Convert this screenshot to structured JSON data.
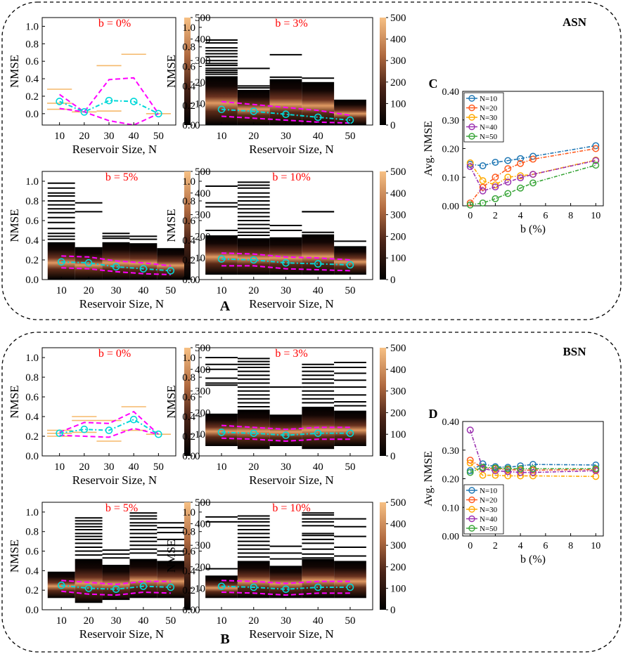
{
  "figure": {
    "panel_labels": {
      "A": "A",
      "B": "B",
      "C": "C",
      "D": "D"
    }
  },
  "colors": {
    "heat_low": "#000000",
    "heat_mid": "#7a3d24",
    "heat_high": "#f2b87a",
    "mean_line": "#00d8d8",
    "band_line": "#ff00ff",
    "title_red": "#ff0000",
    "err_bar": "#f5b86a"
  },
  "groups": [
    {
      "id": "asn",
      "label": "ASN"
    },
    {
      "id": "bsn",
      "label": "BSN"
    }
  ],
  "chart_data": [
    {
      "id": "asn-b0",
      "type": "heatmap",
      "group": "ASN",
      "title": "b = 0%",
      "xlabel": "Reservoir Size, N",
      "ylabel": "NMSE",
      "categories": [
        10,
        20,
        30,
        40,
        50
      ],
      "xlim": [
        3,
        57
      ],
      "ylim": [
        -0.13,
        1.1
      ],
      "yticks": [
        0.0,
        0.2,
        0.4,
        0.6,
        0.8,
        1.0
      ],
      "colorbar": {
        "min": 0,
        "max": 500,
        "ticks": [
          0,
          100,
          200,
          300,
          400,
          500
        ]
      },
      "mean": [
        0.14,
        0.02,
        0.15,
        0.14,
        0.0
      ],
      "band_upper": [
        0.22,
        0.02,
        0.39,
        0.41,
        0.0
      ],
      "band_lower": [
        0.06,
        0.02,
        -0.08,
        -0.13,
        0.0
      ],
      "dist": "none",
      "err_marks": [
        [
          0.28,
          0.12,
          0.05
        ],
        [
          0.02
        ],
        [
          0.55,
          0.03
        ],
        [
          0.68
        ],
        [
          0.0
        ]
      ]
    },
    {
      "id": "asn-b3",
      "type": "heatmap",
      "group": "ASN",
      "title": "b = 3%",
      "xlabel": "Reservoir Size, N",
      "ylabel": "NMSE",
      "categories": [
        10,
        20,
        30,
        40,
        50
      ],
      "xlim": [
        3,
        57
      ],
      "ylim": [
        0.0,
        1.1
      ],
      "yticks": [
        0.0,
        0.2,
        0.4,
        0.6,
        0.8,
        1.0
      ],
      "colorbar": {
        "min": 0,
        "max": 500,
        "ticks": [
          0,
          100,
          200,
          300,
          400,
          500
        ]
      },
      "mean": [
        0.16,
        0.14,
        0.11,
        0.08,
        0.05
      ],
      "band_upper": [
        0.24,
        0.21,
        0.18,
        0.15,
        0.1
      ],
      "band_lower": [
        0.09,
        0.07,
        0.05,
        0.03,
        0.02
      ],
      "dist": "heat",
      "block_top": [
        0.5,
        0.36,
        0.47,
        0.44,
        0.26
      ],
      "block_bottom": [
        0.0,
        0.0,
        0.0,
        0.0,
        0.0
      ],
      "outliers": [
        [
          0.87,
          0.84,
          0.79,
          0.76,
          0.73,
          0.7,
          0.66,
          0.63,
          0.61,
          0.58,
          0.56,
          0.54,
          0.52
        ],
        [
          0.58,
          0.4,
          0.38
        ],
        [
          0.72,
          0.49
        ],
        [
          0.48
        ],
        []
      ]
    },
    {
      "id": "asn-b5",
      "type": "heatmap",
      "group": "ASN",
      "title": "b = 5%",
      "xlabel": "Reservoir Size, N",
      "ylabel": "NMSE",
      "categories": [
        10,
        20,
        30,
        40,
        50
      ],
      "xlim": [
        3,
        57
      ],
      "ylim": [
        0.0,
        1.1
      ],
      "yticks": [
        0.0,
        0.2,
        0.4,
        0.6,
        0.8,
        1.0
      ],
      "colorbar": {
        "min": 0,
        "max": 500,
        "ticks": [
          0,
          100,
          200,
          300,
          400,
          500
        ]
      },
      "mean": [
        0.18,
        0.17,
        0.13,
        0.11,
        0.09
      ],
      "band_upper": [
        0.24,
        0.23,
        0.19,
        0.17,
        0.14
      ],
      "band_lower": [
        0.12,
        0.11,
        0.08,
        0.06,
        0.05
      ],
      "dist": "heat",
      "block_top": [
        0.38,
        0.33,
        0.38,
        0.37,
        0.32
      ],
      "block_bottom": [
        0.0,
        0.0,
        0.0,
        0.0,
        0.0
      ],
      "outliers": [
        [
          0.98,
          0.93,
          0.88,
          0.85,
          0.8,
          0.76,
          0.72,
          0.68,
          0.63,
          0.58,
          0.52,
          0.47,
          0.44,
          0.41
        ],
        [
          0.78,
          0.69
        ],
        [
          0.47,
          0.44,
          0.42
        ],
        [
          0.44,
          0.41
        ],
        []
      ]
    },
    {
      "id": "asn-b10",
      "type": "heatmap",
      "group": "ASN",
      "title": "b = 10%",
      "xlabel": "Reservoir Size, N",
      "ylabel": "NMSE",
      "categories": [
        10,
        20,
        30,
        40,
        50
      ],
      "xlim": [
        3,
        57
      ],
      "ylim": [
        0.0,
        1.1
      ],
      "yticks": [
        0.0,
        0.2,
        0.4,
        0.6,
        0.8,
        1.0
      ],
      "colorbar": {
        "min": 0,
        "max": 500,
        "ticks": [
          0,
          100,
          200,
          300,
          400,
          500
        ]
      },
      "mean": [
        0.21,
        0.2,
        0.17,
        0.16,
        0.15
      ],
      "band_upper": [
        0.27,
        0.26,
        0.23,
        0.22,
        0.2
      ],
      "band_lower": [
        0.14,
        0.14,
        0.11,
        0.1,
        0.09
      ],
      "dist": "heat",
      "block_top": [
        0.45,
        0.42,
        0.43,
        0.46,
        0.34
      ],
      "block_bottom": [
        0.05,
        0.05,
        0.05,
        0.05,
        0.05
      ],
      "outliers": [
        [
          0.95,
          0.78,
          0.74,
          0.5
        ],
        [
          0.99,
          0.96,
          0.93,
          0.88,
          0.84,
          0.8,
          0.76,
          0.72,
          0.68,
          0.64,
          0.6,
          0.56,
          0.52,
          0.48,
          0.45
        ],
        [
          0.55,
          0.5
        ],
        [
          0.69,
          0.69,
          0.48
        ],
        [
          0.39
        ]
      ]
    },
    {
      "id": "bsn-b0",
      "type": "heatmap",
      "group": "BSN",
      "title": "b = 0%",
      "xlabel": "Reservoir Size, N",
      "ylabel": "NMSE",
      "categories": [
        10,
        20,
        30,
        40,
        50
      ],
      "xlim": [
        3,
        57
      ],
      "ylim": [
        0.0,
        1.1
      ],
      "yticks": [
        0.0,
        0.2,
        0.4,
        0.6,
        0.8,
        1.0
      ],
      "colorbar": {
        "min": 0,
        "max": 500,
        "ticks": [
          0,
          100,
          200,
          300,
          400,
          500
        ]
      },
      "mean": [
        0.23,
        0.27,
        0.26,
        0.37,
        0.22
      ],
      "band_upper": [
        0.24,
        0.34,
        0.33,
        0.45,
        0.22
      ],
      "band_lower": [
        0.21,
        0.2,
        0.19,
        0.28,
        0.22
      ],
      "dist": "none",
      "err_marks": [
        [
          0.26,
          0.23,
          0.2
        ],
        [
          0.4,
          0.36,
          0.24
        ],
        [
          0.36,
          0.15
        ],
        [
          0.5,
          0.26
        ],
        [
          0.22
        ]
      ]
    },
    {
      "id": "bsn-b3",
      "type": "heatmap",
      "group": "BSN",
      "title": "b = 3%",
      "xlabel": "Reservoir Size, N",
      "ylabel": "NMSE",
      "categories": [
        10,
        20,
        30,
        40,
        50
      ],
      "xlim": [
        3,
        57
      ],
      "ylim": [
        0.0,
        1.1
      ],
      "yticks": [
        0.0,
        0.2,
        0.4,
        0.6,
        0.8,
        1.0
      ],
      "colorbar": {
        "min": 0,
        "max": 500,
        "ticks": [
          0,
          100,
          200,
          300,
          400,
          500
        ]
      },
      "mean": [
        0.24,
        0.23,
        0.21,
        0.23,
        0.23
      ],
      "band_upper": [
        0.31,
        0.29,
        0.27,
        0.29,
        0.29
      ],
      "band_lower": [
        0.18,
        0.17,
        0.15,
        0.17,
        0.17
      ],
      "dist": "heat",
      "block_top": [
        0.43,
        0.47,
        0.42,
        0.5,
        0.46
      ],
      "block_bottom": [
        0.1,
        0.07,
        0.1,
        0.07,
        0.1
      ],
      "outliers": [
        [
          1.0,
          0.93,
          0.88,
          0.79,
          0.74,
          0.72
        ],
        [
          0.99,
          0.96,
          0.93,
          0.9,
          0.86,
          0.82,
          0.78,
          0.74,
          0.7,
          0.66,
          0.62,
          0.58,
          0.54,
          0.5
        ],
        [
          0.7
        ],
        [
          0.93,
          0.9,
          0.86,
          0.82,
          0.78,
          0.74,
          0.7,
          0.66,
          0.62,
          0.58,
          0.54
        ],
        [
          0.95,
          0.9,
          0.84,
          0.77,
          0.7,
          0.62,
          0.55,
          0.51
        ]
      ]
    },
    {
      "id": "bsn-b5",
      "type": "heatmap",
      "group": "BSN",
      "title": "b = 5%",
      "xlabel": "Reservoir Size, N",
      "ylabel": "NMSE",
      "categories": [
        10,
        20,
        30,
        40,
        50
      ],
      "xlim": [
        3,
        57
      ],
      "ylim": [
        0.0,
        1.1
      ],
      "yticks": [
        0.0,
        0.2,
        0.4,
        0.6,
        0.8,
        1.0
      ],
      "colorbar": {
        "min": 0,
        "max": 500,
        "ticks": [
          0,
          100,
          200,
          300,
          400,
          500
        ]
      },
      "mean": [
        0.25,
        0.22,
        0.21,
        0.24,
        0.23
      ],
      "band_upper": [
        0.3,
        0.28,
        0.26,
        0.29,
        0.29
      ],
      "band_lower": [
        0.19,
        0.16,
        0.15,
        0.18,
        0.17
      ],
      "dist": "heat",
      "block_top": [
        0.39,
        0.52,
        0.46,
        0.52,
        0.5
      ],
      "block_bottom": [
        0.12,
        0.07,
        0.1,
        0.12,
        0.12
      ],
      "outliers": [
        [],
        [
          0.94,
          0.91,
          0.88,
          0.85,
          0.82,
          0.78,
          0.75,
          0.72,
          0.68,
          0.64,
          0.6,
          0.56
        ],
        [
          0.61,
          0.57,
          0.53
        ],
        [
          0.99,
          0.96,
          0.93,
          0.89,
          0.86,
          0.82,
          0.78,
          0.74,
          0.7,
          0.66,
          0.62,
          0.58
        ],
        [
          0.89,
          0.84,
          0.79,
          0.72,
          0.66,
          0.6,
          0.56
        ]
      ]
    },
    {
      "id": "bsn-b10",
      "type": "heatmap",
      "group": "BSN",
      "title": "b = 10%",
      "xlabel": "Reservoir Size, N",
      "ylabel": "NMSE",
      "categories": [
        10,
        20,
        30,
        40,
        50
      ],
      "xlim": [
        3,
        57
      ],
      "ylim": [
        0.0,
        1.1
      ],
      "yticks": [
        0.0,
        0.2,
        0.4,
        0.6,
        0.8,
        1.0
      ],
      "colorbar": {
        "min": 0,
        "max": 500,
        "ticks": [
          0,
          100,
          200,
          300,
          400,
          500
        ]
      },
      "mean": [
        0.24,
        0.23,
        0.21,
        0.23,
        0.23
      ],
      "band_upper": [
        0.3,
        0.29,
        0.27,
        0.29,
        0.29
      ],
      "band_lower": [
        0.18,
        0.17,
        0.15,
        0.17,
        0.17
      ],
      "dist": "heat",
      "block_top": [
        0.35,
        0.5,
        0.45,
        0.52,
        0.5
      ],
      "block_bottom": [
        0.12,
        0.12,
        0.12,
        0.12,
        0.12
      ],
      "outliers": [
        [
          0.95,
          0.9,
          0.42
        ],
        [
          0.96,
          0.93,
          0.9,
          0.86,
          0.82,
          0.78,
          0.74,
          0.7,
          0.66,
          0.62,
          0.58,
          0.54
        ],
        [
          0.65,
          0.58,
          0.52
        ],
        [
          0.99,
          0.97,
          0.93,
          0.9,
          0.86,
          0.78,
          0.76,
          0.72,
          0.68,
          0.62,
          0.57,
          0.53
        ],
        [
          0.93,
          0.85,
          0.75,
          0.64,
          0.55
        ]
      ]
    },
    {
      "id": "asn-avg",
      "type": "line",
      "group": "ASN",
      "title": "",
      "xlabel": "b (%)",
      "ylabel": "Avg. NMSE",
      "xlim": [
        -0.6,
        10.6
      ],
      "ylim": [
        0.0,
        0.4
      ],
      "xticks": [
        0,
        2,
        4,
        6,
        8,
        10
      ],
      "yticks": [
        0.0,
        0.1,
        0.2,
        0.3,
        0.4
      ],
      "yticklabels": [
        "0.00",
        "0.10",
        "0.20",
        "0.30",
        "0.40"
      ],
      "legend": "top-left",
      "x": [
        0,
        1,
        2,
        3,
        4,
        5,
        10
      ],
      "series": [
        {
          "name": "N=10",
          "color": "#1f77b4",
          "values": [
            0.145,
            0.14,
            0.152,
            0.158,
            0.165,
            0.173,
            0.21
          ]
        },
        {
          "name": "N=20",
          "color": "#ff5a1f",
          "values": [
            0.01,
            0.065,
            0.1,
            0.13,
            0.148,
            0.163,
            0.2
          ]
        },
        {
          "name": "N=30",
          "color": "#ffaa00",
          "values": [
            0.15,
            0.088,
            0.073,
            0.1,
            0.105,
            0.11,
            0.16
          ]
        },
        {
          "name": "N=40",
          "color": "#9b30b0",
          "values": [
            0.137,
            0.052,
            0.066,
            0.083,
            0.098,
            0.11,
            0.158
          ]
        },
        {
          "name": "N=50",
          "color": "#3aa63a",
          "values": [
            0.003,
            0.01,
            0.025,
            0.043,
            0.062,
            0.08,
            0.142
          ]
        }
      ]
    },
    {
      "id": "bsn-avg",
      "type": "line",
      "group": "BSN",
      "title": "",
      "xlabel": "b (%)",
      "ylabel": "Avg. NMSE",
      "xlim": [
        -0.6,
        10.6
      ],
      "ylim": [
        0.0,
        0.4
      ],
      "xticks": [
        0,
        2,
        4,
        6,
        8,
        10
      ],
      "yticks": [
        0.0,
        0.1,
        0.2,
        0.3,
        0.4
      ],
      "yticklabels": [
        "0.00",
        "0.10",
        "0.20",
        "0.30",
        "0.40"
      ],
      "legend": "bottom-left",
      "x": [
        0,
        1,
        2,
        3,
        4,
        5,
        10
      ],
      "series": [
        {
          "name": "N=10",
          "color": "#1f77b4",
          "values": [
            0.228,
            0.252,
            0.242,
            0.24,
            0.245,
            0.25,
            0.248
          ]
        },
        {
          "name": "N=20",
          "color": "#ff5a1f",
          "values": [
            0.265,
            0.238,
            0.235,
            0.232,
            0.23,
            0.23,
            0.232
          ]
        },
        {
          "name": "N=30",
          "color": "#ffaa00",
          "values": [
            0.255,
            0.212,
            0.212,
            0.21,
            0.21,
            0.21,
            0.208
          ]
        },
        {
          "name": "N=40",
          "color": "#9b30b0",
          "values": [
            0.37,
            0.235,
            0.228,
            0.225,
            0.222,
            0.222,
            0.228
          ]
        },
        {
          "name": "N=50",
          "color": "#3aa63a",
          "values": [
            0.222,
            0.24,
            0.238,
            0.235,
            0.235,
            0.235,
            0.235
          ]
        }
      ]
    }
  ]
}
